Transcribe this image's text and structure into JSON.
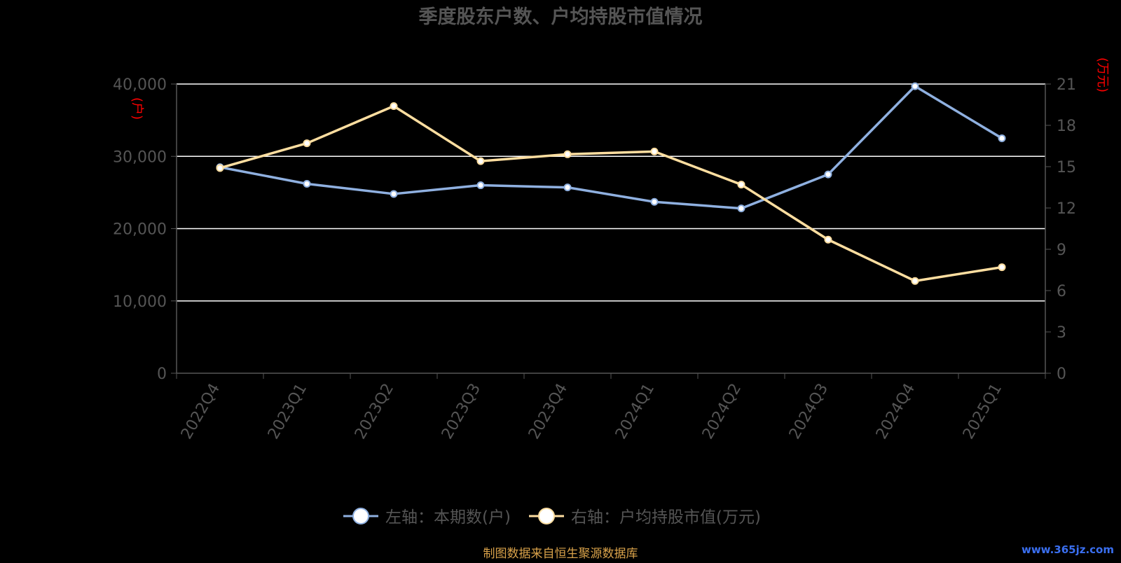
{
  "chart_data": {
    "type": "line",
    "title": "季度股东户数、户均持股市值情况",
    "categories": [
      "2022Q4",
      "2023Q1",
      "2023Q2",
      "2023Q3",
      "2023Q4",
      "2024Q1",
      "2024Q2",
      "2024Q3",
      "2024Q4",
      "2025Q1"
    ],
    "left_axis": {
      "unit": "(户)",
      "ylim": [
        0,
        40000
      ],
      "ticks": [
        "0",
        "10,000",
        "20,000",
        "30,000",
        "40,000"
      ]
    },
    "right_axis": {
      "unit": "(万元)",
      "ylim": [
        0,
        21
      ],
      "ticks": [
        "0",
        "3",
        "6",
        "9",
        "12",
        "15",
        "18",
        "21"
      ]
    },
    "series": [
      {
        "name": "左轴：本期数(户)",
        "axis": "left",
        "color": "#8fb0e0",
        "values": [
          28500,
          26200,
          24800,
          26000,
          25700,
          23700,
          22800,
          27500,
          39700,
          32500
        ]
      },
      {
        "name": "右轴：户均持股市值(万元)",
        "axis": "right",
        "color": "#fedea0",
        "values": [
          14.9,
          16.7,
          19.4,
          15.4,
          15.9,
          16.1,
          13.7,
          9.7,
          6.7,
          7.7
        ]
      }
    ],
    "grid": true,
    "legend_position": "bottom"
  },
  "footer": {
    "source": "制图数据来自恒生聚源数据库",
    "watermark": "www.365jz.com"
  },
  "colors": {
    "title": "#555555",
    "axis_text": "#555555",
    "unit_text": "#ff0000",
    "grid": "#ffffff",
    "source_text": "#d9a24a"
  }
}
